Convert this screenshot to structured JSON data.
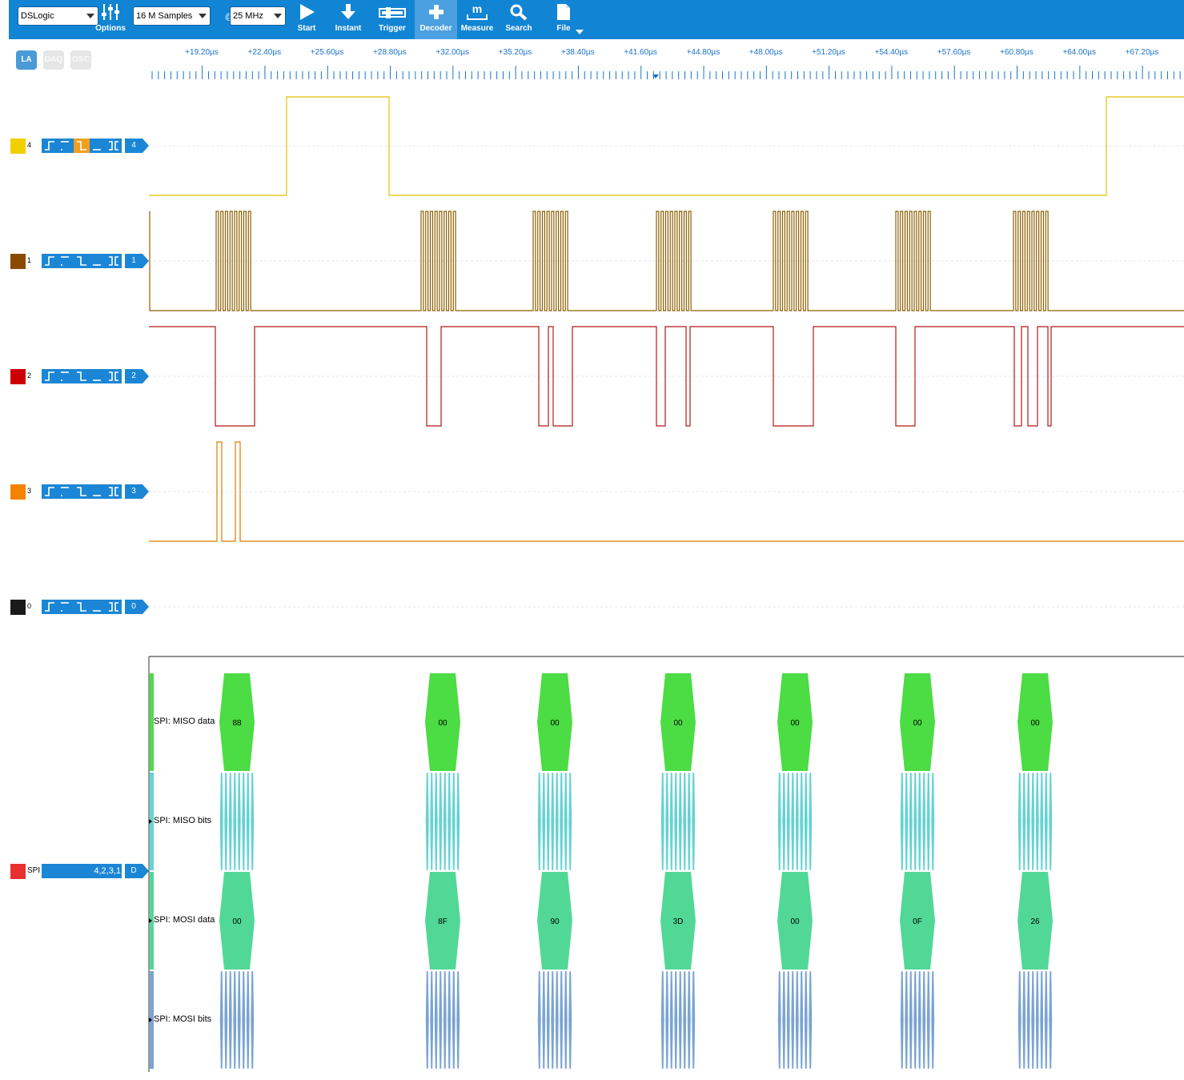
{
  "toolbar": {
    "device": "DSLogic",
    "options_label": "Options",
    "samples": "16 M Samples",
    "at": "@",
    "rate": "25 MHz",
    "start_label": "Start",
    "instant_label": "Instant",
    "trigger_label": "Trigger",
    "decoder_label": "Decoder",
    "measure_label": "Measure",
    "search_label": "Search",
    "file_label": "File"
  },
  "modes": {
    "la": "LA",
    "daq": "DAQ",
    "osc": "OSC"
  },
  "ruler": {
    "labels": [
      "+19.20µs",
      "+22.40µs",
      "+25.60µs",
      "+28.80µs",
      "+32.00µs",
      "+35.20µs",
      "+38.40µs",
      "+41.60µs",
      "+44.80µs",
      "+48.00µs",
      "+51.20µs",
      "+54.40µs",
      "+57.60µs",
      "+60.80µs",
      "+64.00µs",
      "+67.20µs"
    ]
  },
  "channels": [
    {
      "num": "4",
      "tag": "4",
      "color": "#f0d000",
      "wave_color": "#e2c000"
    },
    {
      "num": "1",
      "tag": "1",
      "color": "#8b4a00",
      "wave_color": "#8b6000"
    },
    {
      "num": "2",
      "tag": "2",
      "color": "#cc0000",
      "wave_color": "#b01818"
    },
    {
      "num": "3",
      "tag": "3",
      "color": "#f58200",
      "wave_color": "#e07a00"
    },
    {
      "num": "0",
      "tag": "0",
      "color": "#1a1a1a",
      "wave_color": "#1a1a1a"
    }
  ],
  "decoder": {
    "name": "SPI",
    "channels": "4,2,3,1",
    "tag": "D",
    "color": "#e83030",
    "rows": {
      "miso_data": "SPI: MISO data",
      "miso_bits": "SPI: MISO bits",
      "mosi_data": "SPI: MOSI data",
      "mosi_bits": "SPI: MOSI bits"
    },
    "miso_values": [
      "88",
      "00",
      "00",
      "00",
      "00",
      "00",
      "00"
    ],
    "mosi_values": [
      "00",
      "8F",
      "90",
      "3D",
      "00",
      "0F",
      "26"
    ],
    "colors": {
      "miso_data": "#4cdc44",
      "miso_bits": "#66d2d2",
      "mosi_data": "#52d896",
      "mosi_bits": "#7aa4d2"
    }
  }
}
